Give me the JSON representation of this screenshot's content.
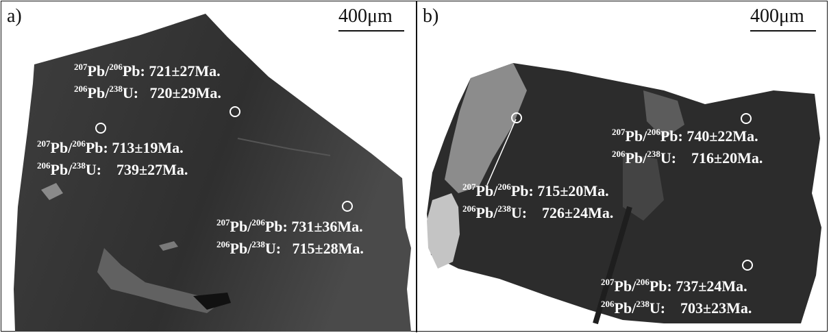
{
  "panels": [
    {
      "label": "a)",
      "scale": "400μm",
      "annotations": [
        {
          "pb_ratio_value": "721±27Ma.",
          "u_ratio_value": "720±29Ma."
        },
        {
          "pb_ratio_value": "713±19Ma.",
          "u_ratio_value": "739±27Ma."
        },
        {
          "pb_ratio_value": "731±36Ma.",
          "u_ratio_value": "715±28Ma."
        }
      ]
    },
    {
      "label": "b)",
      "scale": "400μm",
      "annotations": [
        {
          "pb_ratio_value": "715±20Ma.",
          "u_ratio_value": "726±24Ma."
        },
        {
          "pb_ratio_value": "740±22Ma.",
          "u_ratio_value": "716±20Ma."
        },
        {
          "pb_ratio_value": "737±24Ma.",
          "u_ratio_value": "703±23Ma."
        }
      ]
    }
  ],
  "isotopes": {
    "pb207": "207",
    "pb206": "206",
    "u238": "238",
    "pb": "Pb",
    "slash": "/",
    "u": "U",
    "colon": ":"
  },
  "colors": {
    "background": "#ffffff",
    "grain_a": "#3a3a3a",
    "grain_b": "#2c2c2c",
    "bright_zone": "#b8b8b8",
    "annotation_text": "#ffffff"
  }
}
